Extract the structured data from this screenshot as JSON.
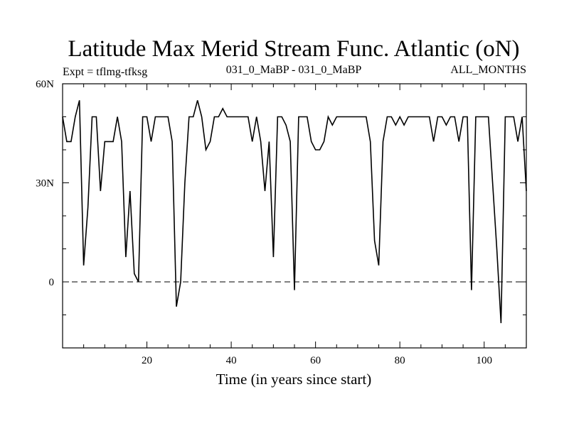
{
  "chart_data": {
    "type": "line",
    "title": "Latitude Max Merid Stream Func. Atlantic (oN)",
    "subtitle_left": "Expt = tflmg-tfksg",
    "subtitle_center": "031_0_MaBP - 031_0_MaBP",
    "subtitle_right": "ALL_MONTHS",
    "xlabel": "Time (in years since start)",
    "ylabel": "",
    "xlim": [
      0,
      110
    ],
    "ylim": [
      -20,
      60
    ],
    "x_ticks": [
      {
        "value": 20,
        "label": "20"
      },
      {
        "value": 40,
        "label": "40"
      },
      {
        "value": 60,
        "label": "60"
      },
      {
        "value": 80,
        "label": "80"
      },
      {
        "value": 100,
        "label": "100"
      }
    ],
    "y_ticks": [
      {
        "value": 0,
        "label": "0"
      },
      {
        "value": 30,
        "label": "30N"
      },
      {
        "value": 60,
        "label": "60N"
      }
    ],
    "reference_line": {
      "y": 0,
      "style": "dashed"
    },
    "series": [
      {
        "color": "#000000",
        "x": [
          0,
          1,
          2,
          3,
          4,
          5,
          6,
          7,
          8,
          9,
          10,
          11,
          12,
          13,
          14,
          15,
          16,
          17,
          18,
          19,
          20,
          21,
          22,
          23,
          24,
          25,
          26,
          27,
          28,
          29,
          30,
          31,
          32,
          33,
          34,
          35,
          36,
          37,
          38,
          39,
          40,
          41,
          42,
          43,
          44,
          45,
          46,
          47,
          48,
          49,
          50,
          51,
          52,
          53,
          54,
          55,
          56,
          57,
          58,
          59,
          60,
          61,
          62,
          63,
          64,
          65,
          66,
          67,
          68,
          69,
          70,
          71,
          72,
          73,
          74,
          75,
          76,
          77,
          78,
          79,
          80,
          81,
          82,
          83,
          84,
          85,
          86,
          87,
          88,
          89,
          90,
          91,
          92,
          93,
          94,
          95,
          96,
          97,
          98,
          99,
          100,
          101,
          102,
          103,
          104,
          105,
          106,
          107,
          108,
          109,
          110
        ],
        "y": [
          50,
          42.5,
          42.5,
          50,
          55,
          5,
          22.5,
          50,
          50,
          27.5,
          42.5,
          42.5,
          42.5,
          50,
          42.5,
          7.5,
          27.5,
          2.5,
          0,
          50,
          50,
          42.5,
          50,
          50,
          50,
          50,
          42.5,
          -7.5,
          0,
          30,
          50,
          50,
          55,
          50,
          40,
          42.5,
          50,
          50,
          52.5,
          50,
          50,
          50,
          50,
          50,
          50,
          42.5,
          50,
          42.5,
          27.5,
          42.5,
          7.5,
          50,
          50,
          47.5,
          42.5,
          -2.5,
          50,
          50,
          50,
          42.5,
          40,
          40,
          42.5,
          50,
          47.5,
          50,
          50,
          50,
          50,
          50,
          50,
          50,
          50,
          42.5,
          12.5,
          5,
          42.5,
          50,
          50,
          47.5,
          50,
          47.5,
          50,
          50,
          50,
          50,
          50,
          50,
          42.5,
          50,
          50,
          47.5,
          50,
          50,
          42.5,
          50,
          50,
          -2.5,
          50,
          50,
          50,
          50,
          30,
          10,
          -12.5,
          50,
          50,
          50,
          42.5,
          50,
          27.5
        ]
      }
    ]
  }
}
